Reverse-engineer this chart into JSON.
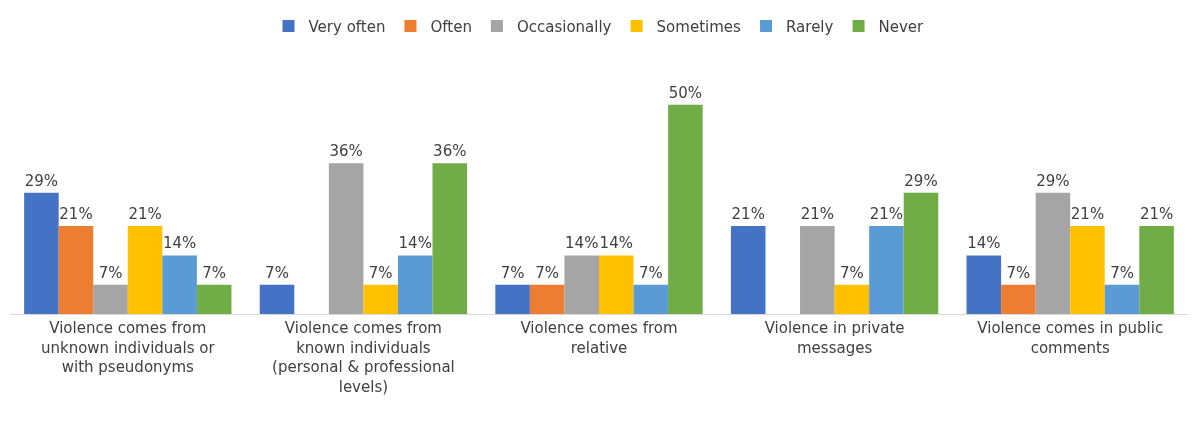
{
  "chart_data": {
    "type": "bar",
    "categories": [
      "Violence comes from unknown individuals or with pseudonyms",
      "Violence comes from known individuals (personal & professional levels)",
      "Violence comes from relative",
      "Violence in private messages",
      "Violence comes in public comments"
    ],
    "series": [
      {
        "name": "Very often",
        "color": "#4472c4",
        "values": [
          29,
          7,
          7,
          21,
          14
        ],
        "value_labels": [
          "29%",
          "7%",
          "7%",
          "21%",
          "14%"
        ]
      },
      {
        "name": "Often",
        "color": "#ed7d31",
        "values": [
          21,
          null,
          7,
          null,
          7
        ],
        "value_labels": [
          "21%",
          null,
          "7%",
          null,
          "7%"
        ]
      },
      {
        "name": "Occasionally",
        "color": "#a5a5a5",
        "values": [
          7,
          36,
          14,
          21,
          29
        ],
        "value_labels": [
          "7%",
          "36%",
          "14%",
          "21%",
          "29%"
        ]
      },
      {
        "name": "Sometimes",
        "color": "#ffc000",
        "values": [
          21,
          7,
          14,
          7,
          21
        ],
        "value_labels": [
          "21%",
          "7%",
          "14%",
          "7%",
          "21%"
        ]
      },
      {
        "name": "Rarely",
        "color": "#5b9bd5",
        "values": [
          14,
          14,
          7,
          21,
          7
        ],
        "value_labels": [
          "14%",
          "14%",
          "7%",
          "21%",
          "7%"
        ]
      },
      {
        "name": "Never",
        "color": "#70ad47",
        "values": [
          7,
          36,
          50,
          29,
          21
        ],
        "value_labels": [
          "7%",
          "36%",
          "50%",
          "29%",
          "21%"
        ]
      }
    ],
    "legend": "top",
    "grid": false
  }
}
